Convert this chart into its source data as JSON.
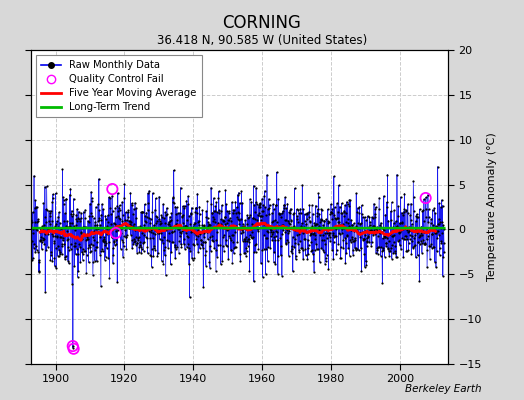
{
  "title": "CORNING",
  "subtitle": "36.418 N, 90.585 W (United States)",
  "ylabel": "Temperature Anomaly (°C)",
  "credit": "Berkeley Earth",
  "xlim": [
    1893,
    2014
  ],
  "ylim": [
    -15,
    20
  ],
  "yticks": [
    -15,
    -10,
    -5,
    0,
    5,
    10,
    15,
    20
  ],
  "xticks": [
    1900,
    1920,
    1940,
    1960,
    1980,
    2000
  ],
  "bg_color": "#d8d8d8",
  "plot_bg_color": "#ffffff",
  "raw_line_color": "#0000ee",
  "raw_dot_color": "#000000",
  "moving_avg_color": "#ff0000",
  "trend_color": "#00bb00",
  "qc_fail_color": "#ff00ff",
  "seed": 12,
  "start_year": 1893,
  "n_months": 1440,
  "noise_std": 2.0,
  "qc_years": [
    1905.0,
    1905.25,
    1916.5,
    1917.5,
    2007.5
  ],
  "qc_vals": [
    -13.0,
    -13.3,
    4.5,
    -0.4,
    3.5
  ],
  "spike_year": 2011.0,
  "spike_val": 7.0,
  "neg_spike_year": 1905.0,
  "neg_spike_val": -13.2,
  "trend_val": 0.15
}
